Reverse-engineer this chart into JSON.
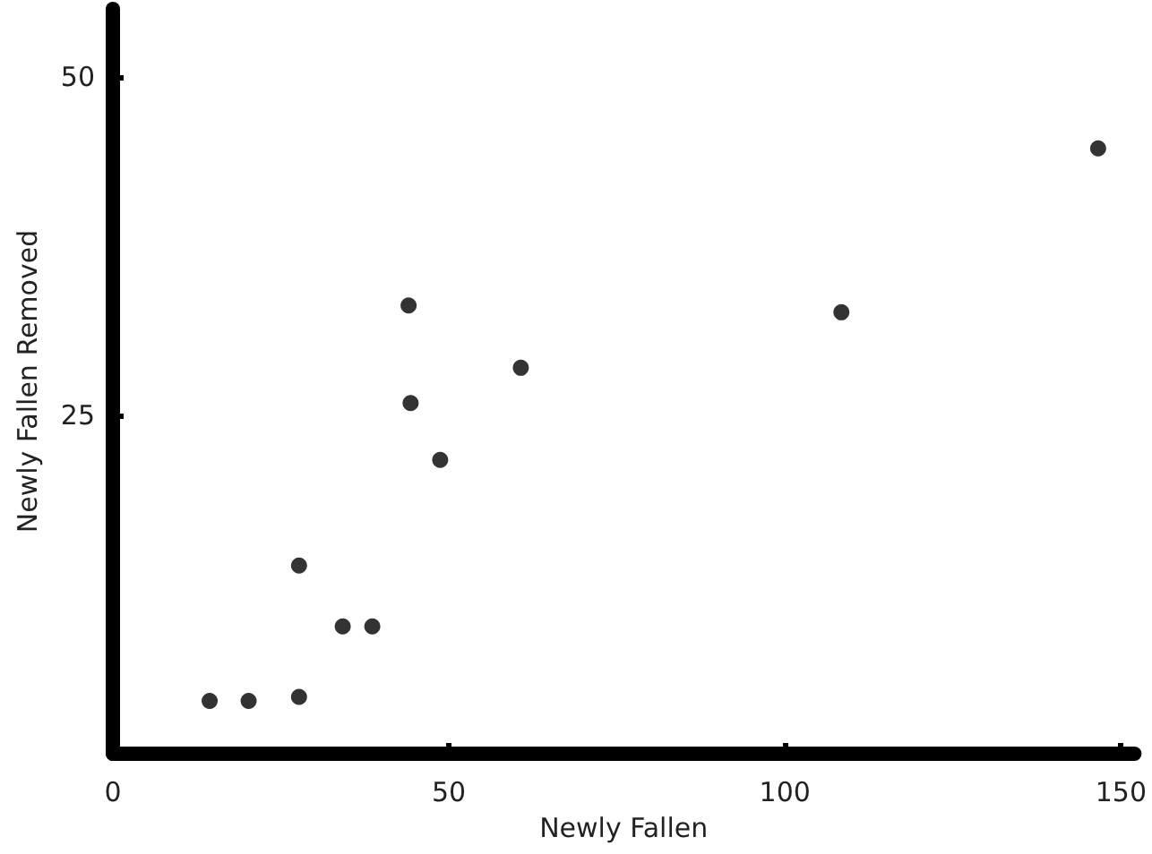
{
  "chart_data": {
    "type": "scatter",
    "xlabel": "Newly Fallen",
    "ylabel": "Newly Fallen Removed",
    "x": [
      14.4,
      20.2,
      27.7,
      27.7,
      34.2,
      38.6,
      44.0,
      44.3,
      48.7,
      60.7,
      108.4,
      146.6
    ],
    "values": [
      3.9,
      3.9,
      4.2,
      13.9,
      9.4,
      9.4,
      33.1,
      25.9,
      21.7,
      28.5,
      32.6,
      44.7
    ],
    "color": "#000000",
    "marker": "circle",
    "grid": false,
    "xlim": [
      0,
      152
    ],
    "xticks": [
      0,
      50,
      100,
      150
    ],
    "ylim": [
      0,
      55
    ],
    "yticks": [
      25,
      50
    ]
  }
}
